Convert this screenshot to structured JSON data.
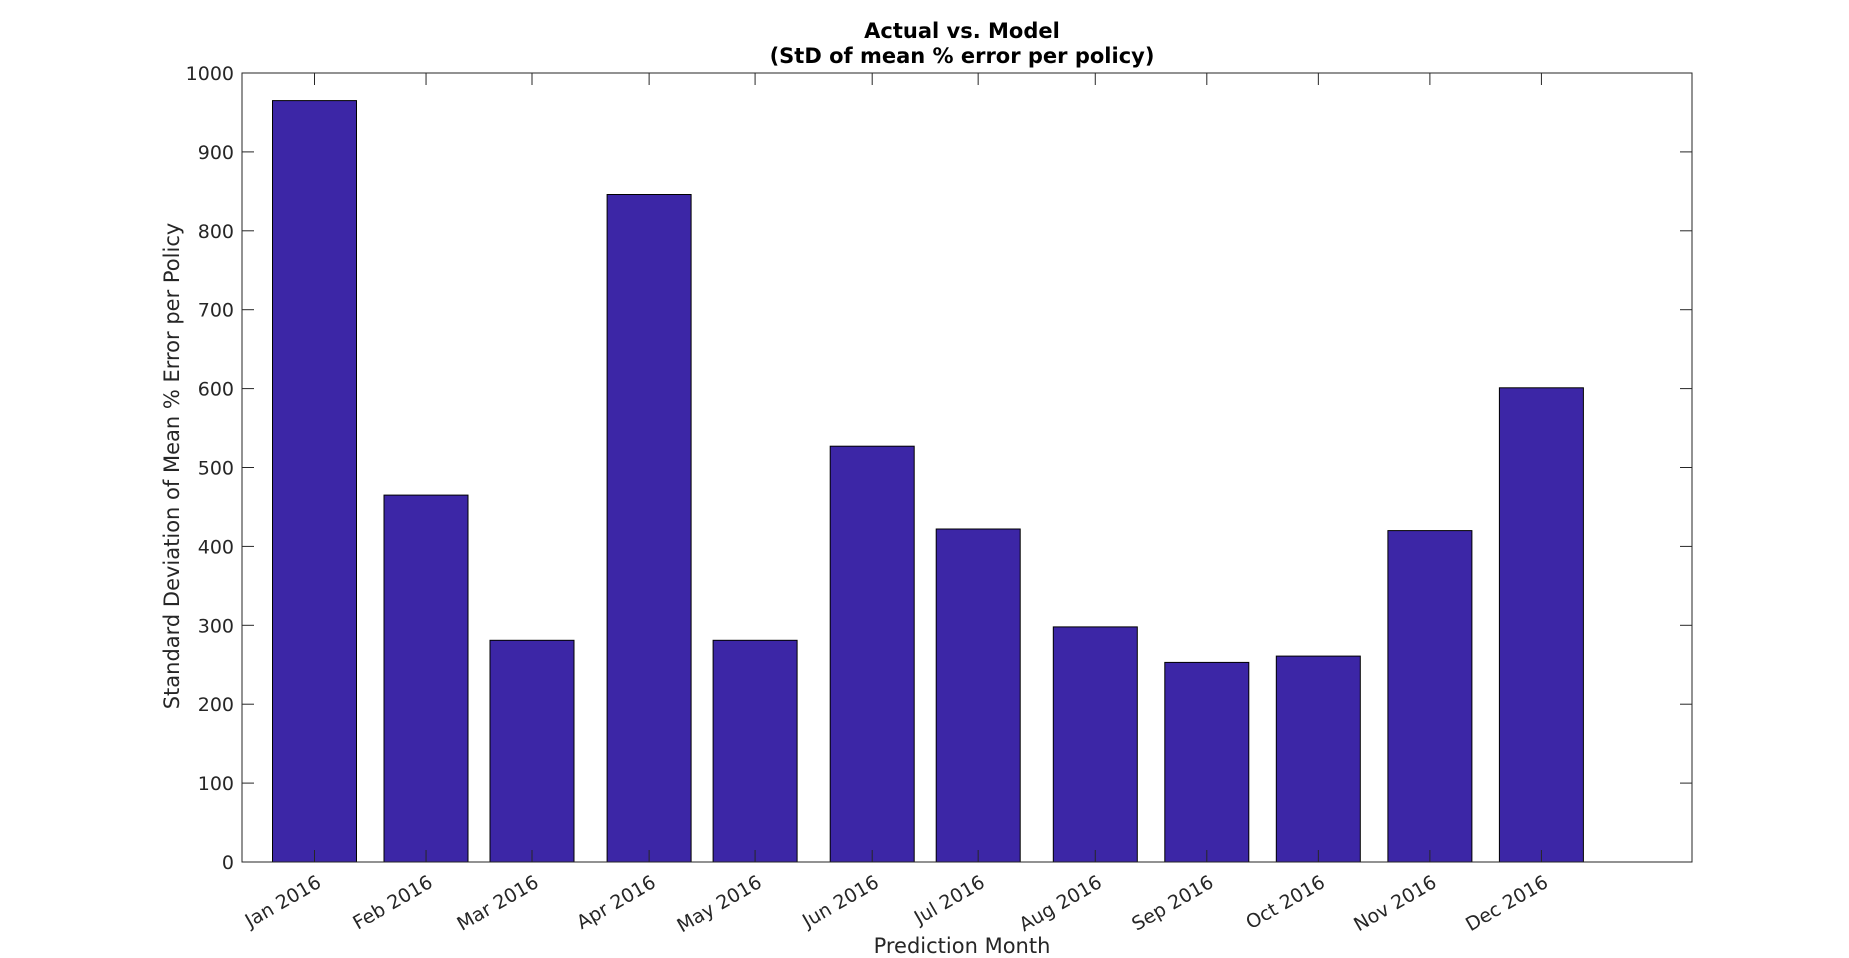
{
  "chart_data": {
    "type": "bar",
    "title": "Actual vs. Model",
    "subtitle": "(StD of mean % error per policy)",
    "xlabel": "Prediction Month",
    "ylabel": "Standard Deviation of Mean % Error per Policy",
    "categories": [
      "Jan 2016",
      "Feb 2016",
      "Mar 2016",
      "Apr 2016",
      "May 2016",
      "Jun 2016",
      "Jul 2016",
      "Aug 2016",
      "Sep 2016",
      "Oct 2016",
      "Nov 2016",
      "Dec 2016"
    ],
    "x": [
      1.5,
      2.5,
      3.45,
      4.5,
      5.45,
      6.5,
      7.45,
      8.5,
      9.5,
      10.5,
      11.5,
      12.5
    ],
    "values": [
      965,
      465,
      281,
      846,
      281,
      527,
      422,
      298,
      253,
      261,
      420,
      601
    ],
    "ylim": [
      0,
      1000
    ],
    "xlim": [
      0.85,
      13.85
    ],
    "yticks": [
      0,
      100,
      200,
      300,
      400,
      500,
      600,
      700,
      800,
      900,
      1000
    ],
    "bar_color": "#3c26a6",
    "grid": false,
    "legend": "none"
  }
}
